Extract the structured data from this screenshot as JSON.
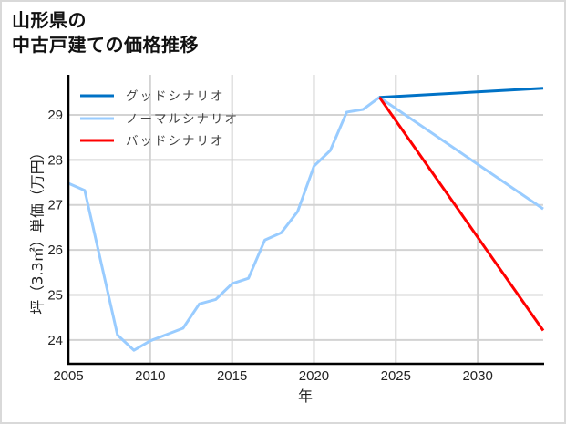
{
  "title": "山形県の\n中古戸建ての価格推移",
  "colors": {
    "good": "#0072C6",
    "normal": "#99CCFF",
    "bad": "#FF0000",
    "grid": "#d3d3d3",
    "axis": "#000000",
    "frame": "#d9d9d9"
  },
  "chart_data": {
    "type": "line",
    "title": "山形県の中古戸建ての価格推移",
    "xlabel": "年",
    "ylabel": "坪（3.3㎡）単価（万円）",
    "xlim": [
      2005,
      2034
    ],
    "ylim": [
      23.47,
      29.89
    ],
    "xticks": [
      2005,
      2010,
      2015,
      2020,
      2025,
      2030
    ],
    "yticks": [
      24,
      25,
      26,
      27,
      28,
      29
    ],
    "grid": true,
    "legend_position": "upper left",
    "series": [
      {
        "name": "グッドシナリオ",
        "color": "#0072C6",
        "x": [
          2024,
          2034
        ],
        "values": [
          29.39,
          29.59
        ]
      },
      {
        "name": "ノーマルシナリオ",
        "color": "#99CCFF",
        "x": [
          2005,
          2006,
          2007,
          2008,
          2009,
          2010,
          2011,
          2012,
          2013,
          2014,
          2015,
          2016,
          2017,
          2018,
          2019,
          2020,
          2021,
          2022,
          2023,
          2024,
          2034
        ],
        "values": [
          27.48,
          27.32,
          25.72,
          24.11,
          23.77,
          23.98,
          24.12,
          24.26,
          24.8,
          24.9,
          25.25,
          25.37,
          26.22,
          26.38,
          26.85,
          27.86,
          28.21,
          29.06,
          29.12,
          29.39,
          26.91
        ]
      },
      {
        "name": "バッドシナリオ",
        "color": "#FF0000",
        "x": [
          2024,
          2034
        ],
        "values": [
          29.39,
          24.21
        ]
      }
    ]
  }
}
